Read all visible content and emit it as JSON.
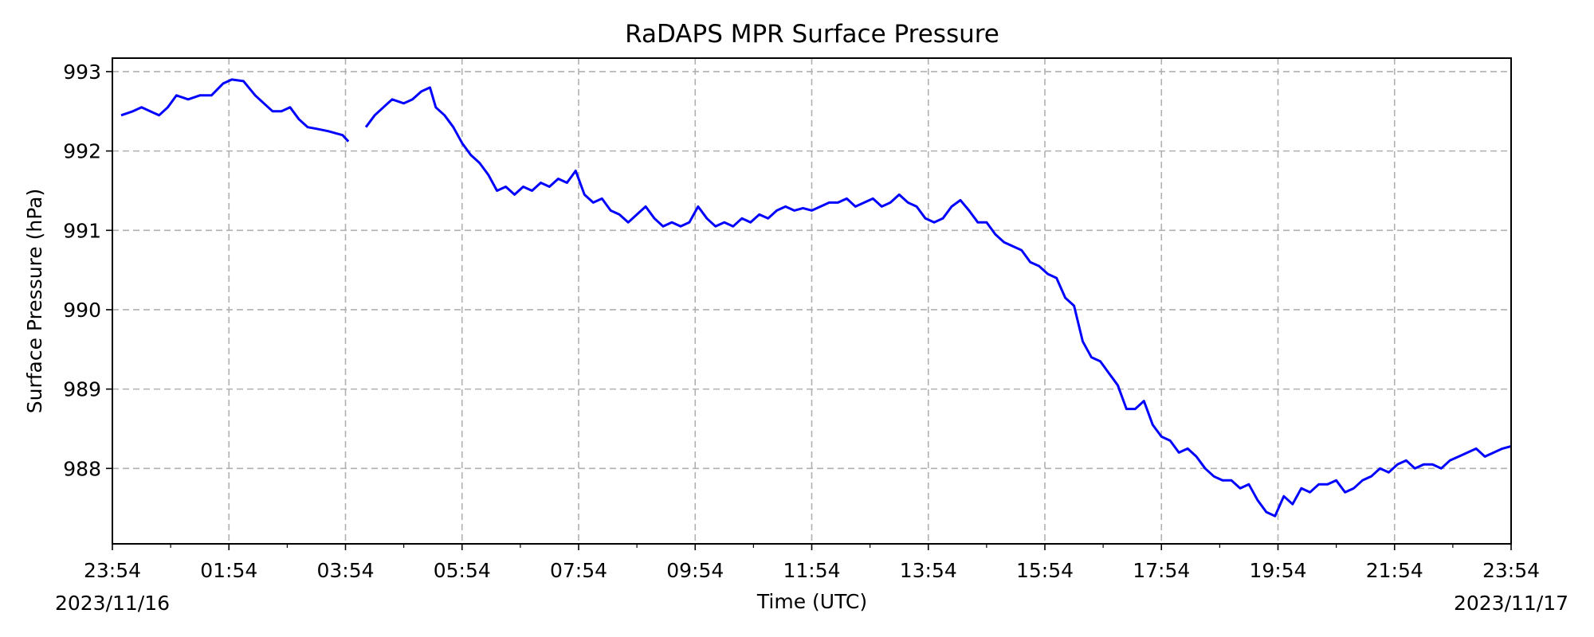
{
  "chart_data": {
    "type": "line",
    "title": "RaDAPS MPR Surface Pressure",
    "xlabel": "Time (UTC)",
    "ylabel": "Surface Pressure (hPa)",
    "xlim_hours": [
      0,
      24
    ],
    "ylim": [
      987.05,
      993.17
    ],
    "grid": true,
    "line_color": "#0000ff",
    "x_ticks": [
      {
        "h": 0,
        "label": "23:54",
        "date": "2023/11/16"
      },
      {
        "h": 2,
        "label": "01:54"
      },
      {
        "h": 4,
        "label": "03:54"
      },
      {
        "h": 6,
        "label": "05:54"
      },
      {
        "h": 8,
        "label": "07:54"
      },
      {
        "h": 10,
        "label": "09:54"
      },
      {
        "h": 12,
        "label": "11:54"
      },
      {
        "h": 14,
        "label": "13:54"
      },
      {
        "h": 16,
        "label": "15:54"
      },
      {
        "h": 18,
        "label": "17:54"
      },
      {
        "h": 20,
        "label": "19:54"
      },
      {
        "h": 22,
        "label": "21:54"
      },
      {
        "h": 24,
        "label": "23:54",
        "date": "2023/11/17"
      }
    ],
    "y_ticks": [
      988,
      989,
      990,
      991,
      992,
      993
    ],
    "series": [
      {
        "segments": [
          [
            [
              0.15,
              992.45
            ],
            [
              0.35,
              992.5
            ],
            [
              0.5,
              992.55
            ],
            [
              0.65,
              992.5
            ],
            [
              0.8,
              992.45
            ],
            [
              0.95,
              992.55
            ],
            [
              1.1,
              992.7
            ],
            [
              1.3,
              992.65
            ],
            [
              1.5,
              992.7
            ],
            [
              1.7,
              992.7
            ],
            [
              1.9,
              992.85
            ],
            [
              2.05,
              992.9
            ],
            [
              2.25,
              992.88
            ],
            [
              2.45,
              992.7
            ],
            [
              2.6,
              992.6
            ],
            [
              2.75,
              992.5
            ],
            [
              2.9,
              992.5
            ],
            [
              3.05,
              992.55
            ],
            [
              3.2,
              992.4
            ],
            [
              3.35,
              992.3
            ],
            [
              3.5,
              992.28
            ],
            [
              3.7,
              992.25
            ],
            [
              3.85,
              992.22
            ],
            [
              3.95,
              992.2
            ],
            [
              4.05,
              992.12
            ]
          ],
          [
            [
              4.35,
              992.3
            ],
            [
              4.5,
              992.45
            ],
            [
              4.65,
              992.55
            ],
            [
              4.8,
              992.65
            ],
            [
              5.0,
              992.6
            ],
            [
              5.15,
              992.65
            ],
            [
              5.3,
              992.75
            ],
            [
              5.45,
              992.8
            ],
            [
              5.55,
              992.55
            ],
            [
              5.7,
              992.45
            ],
            [
              5.85,
              992.3
            ],
            [
              6.0,
              992.1
            ],
            [
              6.15,
              991.95
            ],
            [
              6.3,
              991.85
            ],
            [
              6.45,
              991.7
            ],
            [
              6.6,
              991.5
            ],
            [
              6.75,
              991.55
            ],
            [
              6.9,
              991.45
            ],
            [
              7.05,
              991.55
            ],
            [
              7.2,
              991.5
            ],
            [
              7.35,
              991.6
            ],
            [
              7.5,
              991.55
            ],
            [
              7.65,
              991.65
            ],
            [
              7.8,
              991.6
            ],
            [
              7.95,
              991.75
            ],
            [
              8.1,
              991.45
            ],
            [
              8.25,
              991.35
            ],
            [
              8.4,
              991.4
            ],
            [
              8.55,
              991.25
            ],
            [
              8.7,
              991.2
            ],
            [
              8.85,
              991.1
            ],
            [
              9.0,
              991.2
            ],
            [
              9.15,
              991.3
            ],
            [
              9.3,
              991.15
            ],
            [
              9.45,
              991.05
            ],
            [
              9.6,
              991.1
            ],
            [
              9.75,
              991.05
            ],
            [
              9.9,
              991.1
            ],
            [
              10.05,
              991.3
            ],
            [
              10.2,
              991.15
            ],
            [
              10.35,
              991.05
            ],
            [
              10.5,
              991.1
            ],
            [
              10.65,
              991.05
            ],
            [
              10.8,
              991.15
            ],
            [
              10.95,
              991.1
            ],
            [
              11.1,
              991.2
            ],
            [
              11.25,
              991.15
            ],
            [
              11.4,
              991.25
            ],
            [
              11.55,
              991.3
            ],
            [
              11.7,
              991.25
            ],
            [
              11.85,
              991.28
            ],
            [
              12.0,
              991.25
            ],
            [
              12.15,
              991.3
            ],
            [
              12.3,
              991.35
            ],
            [
              12.45,
              991.35
            ],
            [
              12.6,
              991.4
            ],
            [
              12.75,
              991.3
            ],
            [
              12.9,
              991.35
            ],
            [
              13.05,
              991.4
            ],
            [
              13.2,
              991.3
            ],
            [
              13.35,
              991.35
            ],
            [
              13.5,
              991.45
            ],
            [
              13.65,
              991.35
            ],
            [
              13.8,
              991.3
            ],
            [
              13.95,
              991.15
            ],
            [
              14.1,
              991.1
            ],
            [
              14.25,
              991.15
            ],
            [
              14.4,
              991.3
            ],
            [
              14.55,
              991.38
            ],
            [
              14.7,
              991.25
            ],
            [
              14.85,
              991.1
            ],
            [
              15.0,
              991.1
            ],
            [
              15.15,
              990.95
            ],
            [
              15.3,
              990.85
            ],
            [
              15.45,
              990.8
            ],
            [
              15.6,
              990.75
            ],
            [
              15.75,
              990.6
            ],
            [
              15.9,
              990.55
            ],
            [
              16.05,
              990.45
            ],
            [
              16.2,
              990.4
            ],
            [
              16.35,
              990.15
            ],
            [
              16.5,
              990.05
            ],
            [
              16.65,
              989.6
            ],
            [
              16.8,
              989.4
            ],
            [
              16.95,
              989.35
            ],
            [
              17.1,
              989.2
            ],
            [
              17.25,
              989.05
            ],
            [
              17.4,
              988.75
            ],
            [
              17.55,
              988.75
            ],
            [
              17.7,
              988.85
            ],
            [
              17.85,
              988.55
            ],
            [
              18.0,
              988.4
            ],
            [
              18.15,
              988.35
            ],
            [
              18.3,
              988.2
            ],
            [
              18.45,
              988.25
            ],
            [
              18.6,
              988.15
            ],
            [
              18.75,
              988.0
            ],
            [
              18.9,
              987.9
            ],
            [
              19.05,
              987.85
            ],
            [
              19.2,
              987.85
            ],
            [
              19.35,
              987.75
            ],
            [
              19.5,
              987.8
            ],
            [
              19.65,
              987.6
            ],
            [
              19.8,
              987.45
            ],
            [
              19.95,
              987.4
            ],
            [
              20.1,
              987.65
            ],
            [
              20.25,
              987.55
            ],
            [
              20.4,
              987.75
            ],
            [
              20.55,
              987.7
            ],
            [
              20.7,
              987.8
            ],
            [
              20.85,
              987.8
            ],
            [
              21.0,
              987.85
            ],
            [
              21.15,
              987.7
            ],
            [
              21.3,
              987.75
            ],
            [
              21.45,
              987.85
            ],
            [
              21.6,
              987.9
            ],
            [
              21.75,
              988.0
            ],
            [
              21.9,
              987.95
            ],
            [
              22.05,
              988.05
            ],
            [
              22.2,
              988.1
            ],
            [
              22.35,
              988.0
            ],
            [
              22.5,
              988.05
            ],
            [
              22.65,
              988.05
            ],
            [
              22.8,
              988.0
            ],
            [
              22.95,
              988.1
            ],
            [
              23.1,
              988.15
            ],
            [
              23.25,
              988.2
            ],
            [
              23.4,
              988.25
            ],
            [
              23.55,
              988.15
            ],
            [
              23.7,
              988.2
            ],
            [
              23.85,
              988.25
            ],
            [
              24.0,
              988.28
            ]
          ]
        ]
      }
    ]
  }
}
